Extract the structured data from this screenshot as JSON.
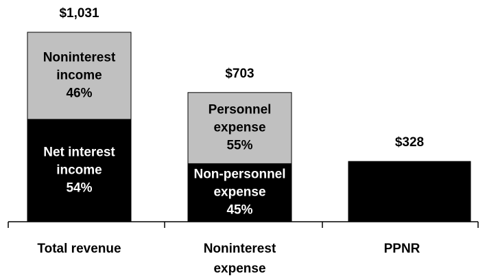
{
  "chart_data": {
    "type": "stacked_bar",
    "bars": [
      {
        "category": [
          "Total revenue"
        ],
        "total": 1031,
        "total_label": "$1,031",
        "segments": [
          {
            "name": [
              "Net interest",
              "income"
            ],
            "value": 557,
            "share": 54,
            "share_label": "54%",
            "color": "#000000",
            "text_color": "#ffffff"
          },
          {
            "name": [
              "Noninterest",
              "income"
            ],
            "value": 474,
            "share": 46,
            "share_label": "46%",
            "color": "#c0c0c0",
            "text_color": "#000000"
          }
        ]
      },
      {
        "category": [
          "Noninterest",
          "expense"
        ],
        "total": 703,
        "total_label": "$703",
        "segments": [
          {
            "name": [
              "Non-personnel",
              "expense"
            ],
            "value": 316,
            "share": 45,
            "share_label": "45%",
            "color": "#000000",
            "text_color": "#ffffff"
          },
          {
            "name": [
              "Personnel",
              "expense"
            ],
            "value": 387,
            "share": 55,
            "share_label": "55%",
            "color": "#c0c0c0",
            "text_color": "#000000"
          }
        ]
      },
      {
        "category": [
          "PPNR"
        ],
        "total": 328,
        "total_label": "$328",
        "segments": [
          {
            "value": 328,
            "color": "#000000"
          }
        ]
      }
    ]
  }
}
